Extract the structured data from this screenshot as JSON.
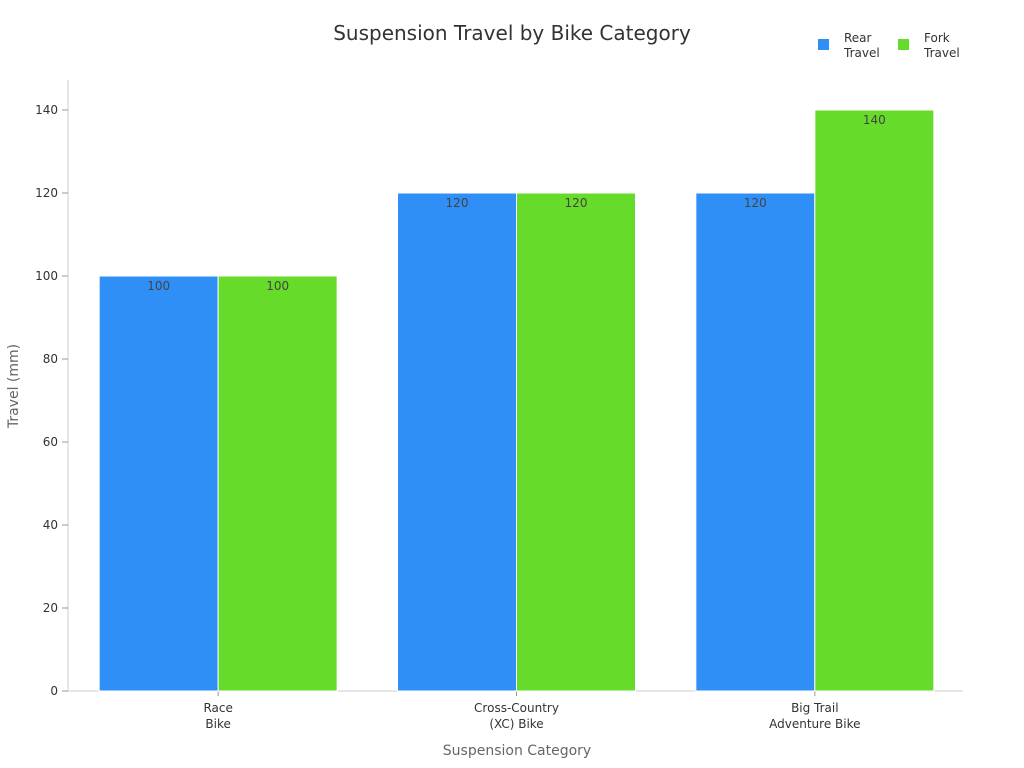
{
  "chart_data": {
    "type": "bar",
    "title": "Suspension Travel by Bike Category",
    "xlabel": "Suspension Category",
    "ylabel": "Travel (mm)",
    "categories": [
      [
        "Race",
        "Bike"
      ],
      [
        "Cross-Country",
        "(XC) Bike"
      ],
      [
        "Big Trail",
        "Adventure Bike"
      ]
    ],
    "series": [
      {
        "name": [
          "Rear",
          "Travel"
        ],
        "values": [
          100,
          120,
          120
        ],
        "color": "#2f8ff7"
      },
      {
        "name": [
          "Fork",
          "Travel"
        ],
        "values": [
          100,
          120,
          140
        ],
        "color": "#66db2a"
      }
    ],
    "ylim": [
      0,
      140
    ],
    "yticks": [
      0,
      20,
      40,
      60,
      80,
      100,
      120,
      140
    ],
    "grid": false,
    "legend_position": "top-right",
    "data_labels": true
  }
}
